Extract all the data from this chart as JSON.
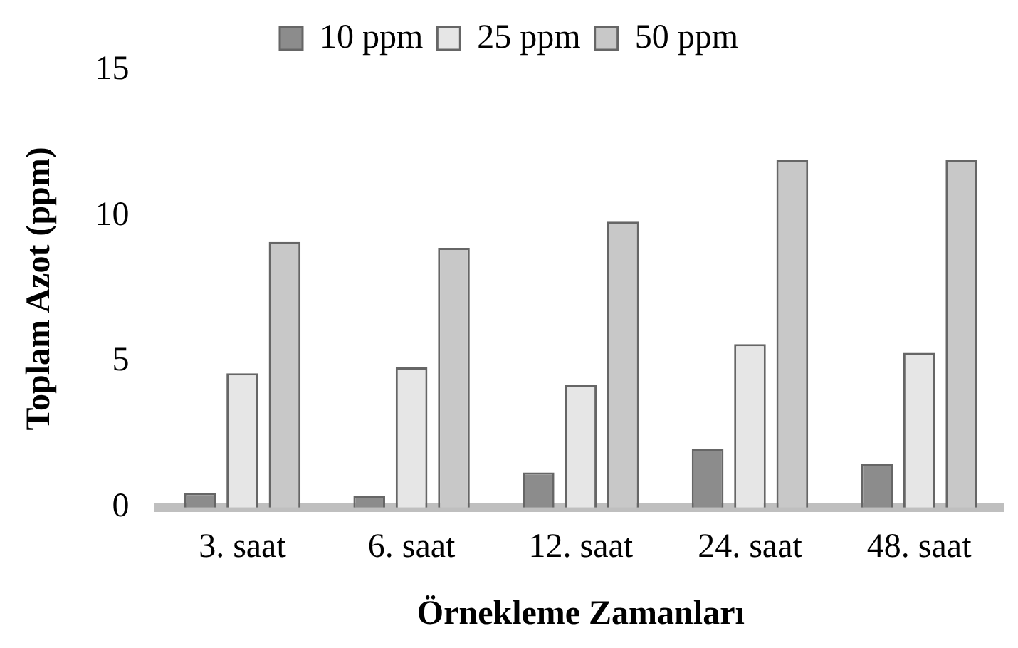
{
  "chart_data": {
    "type": "bar",
    "xlabel": "Örnekleme Zamanları",
    "ylabel": "Toplam Azot (ppm)",
    "categories": [
      "3. saat",
      "6. saat",
      "12. saat",
      "24. saat",
      "48. saat"
    ],
    "series": [
      {
        "name": "10 ppm",
        "color": "#8c8c8c",
        "values": [
          0.5,
          0.4,
          1.2,
          2.0,
          1.5
        ]
      },
      {
        "name": "25 ppm",
        "color": "#e6e6e6",
        "values": [
          4.6,
          4.8,
          4.2,
          5.6,
          5.3
        ]
      },
      {
        "name": "50 ppm",
        "color": "#c8c8c8",
        "values": [
          9.1,
          8.9,
          9.8,
          11.9,
          11.9
        ]
      }
    ],
    "ylim": [
      0,
      15
    ],
    "yticks": [
      0,
      5,
      10,
      15
    ],
    "grid": false,
    "legend": "top"
  }
}
